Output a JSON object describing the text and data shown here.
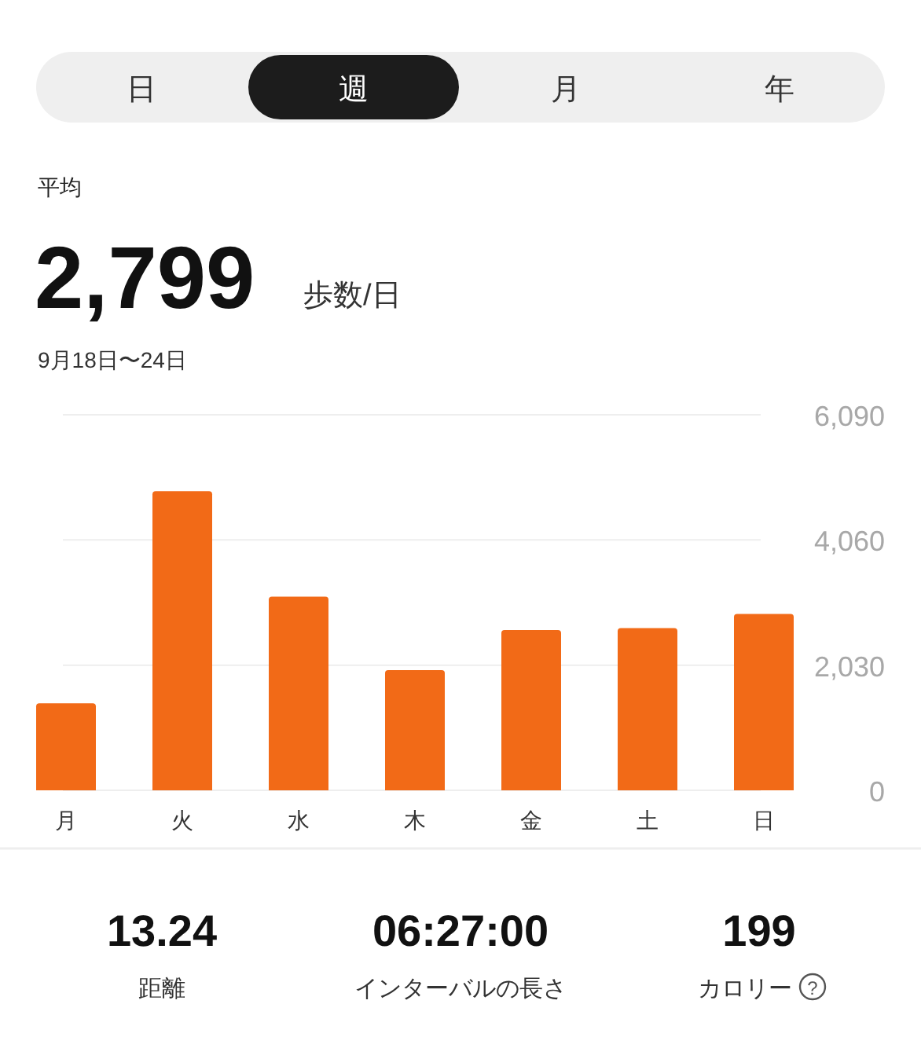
{
  "chart_data": {
    "type": "bar",
    "title": "平均",
    "subtitle": "9月18日〜24日",
    "categories": [
      "月",
      "火",
      "水",
      "木",
      "金",
      "土",
      "日"
    ],
    "values": [
      1410,
      4850,
      3140,
      1950,
      2600,
      2630,
      2860
    ],
    "color": "#f26a17",
    "ylim": [
      0,
      6090
    ],
    "yticks": [
      0,
      {
        "value": 2030,
        "label": "2,030"
      },
      {
        "value": 4060,
        "label": "4,060"
      },
      {
        "value": 6090,
        "label": "6,090"
      }
    ],
    "grid": "y",
    "annotations": [
      "日",
      "週",
      "月",
      "年",
      "2,799",
      "歩数/日",
      "13.24",
      "距離",
      "06:27:00",
      "インターバルの長さ",
      "199",
      "カロリー",
      "?"
    ]
  }
}
